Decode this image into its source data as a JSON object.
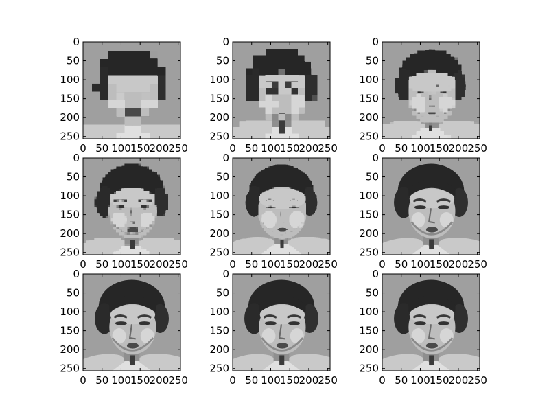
{
  "chart_data": {
    "type": "image",
    "grid_shape": [
      3,
      3
    ],
    "image_extent": [
      0,
      256
    ],
    "x_ticks": [
      "0",
      "50",
      "100",
      "150",
      "200",
      "250"
    ],
    "y_ticks": [
      "0",
      "50",
      "100",
      "150",
      "200",
      "250"
    ],
    "tick_values": [
      0,
      50,
      100,
      150,
      200,
      250
    ],
    "colormap": "gray",
    "panels": [
      {
        "block_resolution": 16
      },
      {
        "block_resolution": 20
      },
      {
        "block_resolution": 32
      },
      {
        "block_resolution": 48
      },
      {
        "block_resolution": 64
      },
      {
        "block_resolution": 96
      },
      {
        "block_resolution": 128
      },
      {
        "block_resolution": 192
      },
      {
        "block_resolution": 256
      }
    ],
    "grid": false
  }
}
